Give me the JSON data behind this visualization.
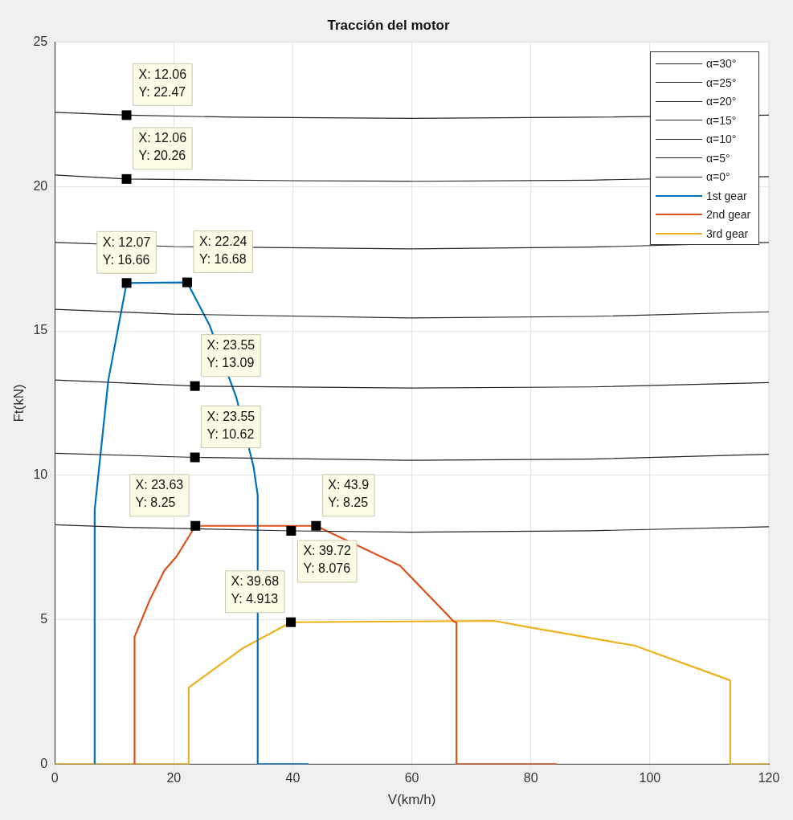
{
  "chart_data": {
    "type": "line",
    "title": "Tracción del motor",
    "xlabel": "V(km/h)",
    "ylabel": "Ft(kN)",
    "xlim": [
      0,
      120
    ],
    "xticks": [
      0,
      20,
      40,
      60,
      80,
      100,
      120
    ],
    "ylim": [
      0,
      25
    ],
    "yticks": [
      0,
      5,
      10,
      15,
      20,
      25
    ],
    "grid": true,
    "legend": "top right",
    "marker": "none",
    "line_style": "solid",
    "series": [
      {
        "name": "α=30°",
        "color": "#262626",
        "x": [
          0,
          12.06,
          30,
          60,
          90,
          120
        ],
        "values": [
          22.57,
          22.47,
          22.4,
          22.36,
          22.4,
          22.47
        ]
      },
      {
        "name": "α=25°",
        "color": "#262626",
        "x": [
          0,
          12.06,
          40,
          60,
          90,
          120
        ],
        "values": [
          20.4,
          20.26,
          20.2,
          20.18,
          20.22,
          20.34
        ]
      },
      {
        "name": "α=20°",
        "color": "#262626",
        "x": [
          0,
          20,
          60,
          90,
          120
        ],
        "values": [
          18.06,
          17.92,
          17.84,
          17.9,
          18.06
        ]
      },
      {
        "name": "α=15°",
        "color": "#262626",
        "x": [
          0,
          20,
          60,
          90,
          120
        ],
        "values": [
          15.75,
          15.58,
          15.45,
          15.5,
          15.66
        ]
      },
      {
        "name": "α=10°",
        "color": "#262626",
        "x": [
          0,
          23.55,
          60,
          90,
          120
        ],
        "values": [
          13.3,
          13.09,
          13.02,
          13.06,
          13.21
        ]
      },
      {
        "name": "α=5°",
        "color": "#262626",
        "x": [
          0,
          23.55,
          60,
          90,
          120
        ],
        "values": [
          10.76,
          10.62,
          10.52,
          10.56,
          10.73
        ]
      },
      {
        "name": "α=0°",
        "color": "#262626",
        "x": [
          0,
          12,
          39.72,
          60,
          90,
          120
        ],
        "values": [
          8.29,
          8.2,
          8.076,
          8.03,
          8.08,
          8.22
        ]
      },
      {
        "name": "1st gear",
        "color": "#0072bd",
        "x": [
          6.7,
          6.7,
          9,
          12.07,
          22.24,
          26,
          30.5,
          33.4,
          34.1,
          34.1,
          42.6
        ],
        "values": [
          0,
          8.8,
          13.3,
          16.66,
          16.68,
          15.2,
          12.7,
          10.3,
          9.3,
          0,
          0
        ]
      },
      {
        "name": "2nd gear",
        "color": "#d95319",
        "x": [
          13.4,
          13.4,
          16,
          18.4,
          20.5,
          23.63,
          43.9,
          58,
          67,
          67.5,
          67.5,
          84.4
        ],
        "values": [
          0,
          4.4,
          5.7,
          6.7,
          7.2,
          8.25,
          8.25,
          6.87,
          4.95,
          4.9,
          0,
          0
        ]
      },
      {
        "name": "3rd gear",
        "color": "#edb120",
        "x": [
          0,
          22.5,
          22.5,
          31.5,
          39.68,
          73.8,
          80,
          97.5,
          113.5,
          113.5,
          120
        ],
        "values": [
          0,
          0,
          2.65,
          4.0,
          4.913,
          4.96,
          4.73,
          4.1,
          2.9,
          0,
          0
        ]
      }
    ],
    "annotations": [
      {
        "text": "X: 12.06\nY: 22.47",
        "x": 12.06,
        "y": 22.47
      },
      {
        "text": "X: 12.06\nY: 20.26",
        "x": 12.06,
        "y": 20.26
      },
      {
        "text": "X: 12.07\nY: 16.66",
        "x": 12.07,
        "y": 16.66
      },
      {
        "text": "X: 22.24\nY: 16.68",
        "x": 22.24,
        "y": 16.68
      },
      {
        "text": "X: 23.55\nY: 13.09",
        "x": 23.55,
        "y": 13.09
      },
      {
        "text": "X: 23.55\nY: 10.62",
        "x": 23.55,
        "y": 10.62
      },
      {
        "text": "X: 23.63\nY: 8.25",
        "x": 23.63,
        "y": 8.25
      },
      {
        "text": "X: 43.9\nY: 8.25",
        "x": 43.9,
        "y": 8.25
      },
      {
        "text": "X: 39.72\nY: 8.076",
        "x": 39.72,
        "y": 8.076
      },
      {
        "text": "X: 39.68\nY: 4.913",
        "x": 39.68,
        "y": 4.913
      }
    ]
  }
}
